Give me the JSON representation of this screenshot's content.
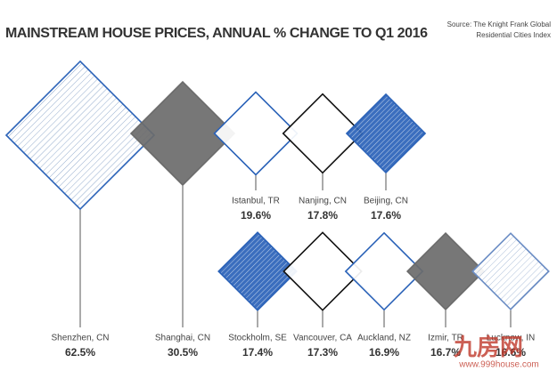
{
  "chart_data": {
    "type": "diamond",
    "title": "MAINSTREAM HOUSE PRICES, ANNUAL % CHANGE TO Q1 2016",
    "source": [
      "Source: The Knight Frank Global",
      "Residential Cities Index"
    ],
    "categories": [
      "Shenzhen, CN",
      "Shanghai, CN",
      "Istanbul, TR",
      "Nanjing, CN",
      "Beijing, CN",
      "Stockholm, SE",
      "Vancouver, CA",
      "Auckland, NZ",
      "Izmir, TR",
      "Lucknow, IN"
    ],
    "values": [
      62.5,
      30.5,
      19.6,
      17.8,
      17.6,
      17.4,
      17.3,
      16.9,
      16.7,
      16.6
    ],
    "value_labels": [
      "62.5%",
      "30.5%",
      "19.6%",
      "17.8%",
      "17.6%",
      "17.4%",
      "17.3%",
      "16.9%",
      "16.7%",
      "16.6%"
    ],
    "styles": [
      "hatch-white",
      "gray",
      "white-blue",
      "white-black",
      "hatch-blue",
      "hatch-blue",
      "white-black",
      "white-blue",
      "gray",
      "hatch-light"
    ],
    "watermark": [
      "九房网",
      "www.999house.com"
    ]
  }
}
